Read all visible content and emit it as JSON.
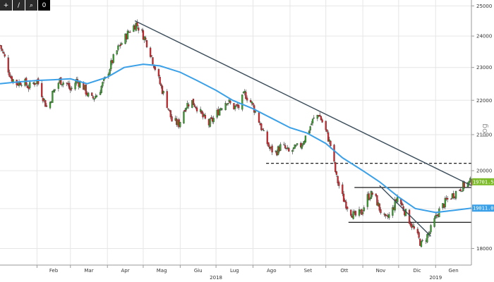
{
  "toolbar": {
    "buttons": [
      {
        "icon": "crosshair-icon",
        "glyph": "+"
      },
      {
        "icon": "pencil-icon",
        "glyph": "/"
      },
      {
        "icon": "magnifier-icon",
        "glyph": "⌕"
      },
      {
        "icon": "zero-icon",
        "glyph": "0"
      }
    ]
  },
  "chart_data": {
    "type": "candlestick",
    "title": "",
    "ylabel_right": "Log",
    "y_scale": "log",
    "ylim": [
      17600,
      25200
    ],
    "y_ticks": [
      18000,
      19000,
      20000,
      21000,
      22000,
      23000,
      24000,
      25000
    ],
    "y_tick_labels": [
      "18000",
      "19000",
      "20000",
      "21000",
      "22000",
      "23000",
      "24000",
      "25000"
    ],
    "x_range": [
      "2018-01-01",
      "2019-01-31"
    ],
    "months": [
      {
        "label": "Feb",
        "date": "2018-02-01"
      },
      {
        "label": "Mar",
        "date": "2018-03-01"
      },
      {
        "label": "Apr",
        "date": "2018-04-01"
      },
      {
        "label": "Mag",
        "date": "2018-05-01"
      },
      {
        "label": "Giu",
        "date": "2018-06-01"
      },
      {
        "label": "Lug",
        "date": "2018-07-01"
      },
      {
        "label": "Ago",
        "date": "2018-08-01"
      },
      {
        "label": "Set",
        "date": "2018-09-01"
      },
      {
        "label": "Ott",
        "date": "2018-10-01"
      },
      {
        "label": "Nov",
        "date": "2018-11-01"
      },
      {
        "label": "Dic",
        "date": "2018-12-01"
      },
      {
        "label": "Gen",
        "date": "2019-01-01"
      }
    ],
    "years": [
      {
        "label": "2018",
        "date": "2018-07-01"
      },
      {
        "label": "2019",
        "date": "2019-01-01"
      }
    ],
    "close_path": [
      [
        "2018-01-01",
        23700
      ],
      [
        "2018-01-05",
        23300
      ],
      [
        "2018-01-10",
        22700
      ],
      [
        "2018-01-15",
        22500
      ],
      [
        "2018-01-20",
        22600
      ],
      [
        "2018-01-25",
        22400
      ],
      [
        "2018-02-01",
        22600
      ],
      [
        "2018-02-06",
        22100
      ],
      [
        "2018-02-10",
        21700
      ],
      [
        "2018-02-14",
        22200
      ],
      [
        "2018-02-20",
        22600
      ],
      [
        "2018-02-26",
        22500
      ],
      [
        "2018-03-01",
        22300
      ],
      [
        "2018-03-06",
        22600
      ],
      [
        "2018-03-12",
        22400
      ],
      [
        "2018-03-18",
        22000
      ],
      [
        "2018-03-24",
        22200
      ],
      [
        "2018-03-31",
        22700
      ],
      [
        "2018-04-05",
        23200
      ],
      [
        "2018-04-10",
        23600
      ],
      [
        "2018-04-15",
        23900
      ],
      [
        "2018-04-20",
        24200
      ],
      [
        "2018-04-25",
        24400
      ],
      [
        "2018-04-30",
        24100
      ],
      [
        "2018-05-05",
        23700
      ],
      [
        "2018-05-10",
        23100
      ],
      [
        "2018-05-15",
        22500
      ],
      [
        "2018-05-20",
        22000
      ],
      [
        "2018-05-25",
        21400
      ],
      [
        "2018-05-31",
        21300
      ],
      [
        "2018-06-05",
        21800
      ],
      [
        "2018-06-10",
        22000
      ],
      [
        "2018-06-15",
        21800
      ],
      [
        "2018-06-20",
        21500
      ],
      [
        "2018-06-25",
        21300
      ],
      [
        "2018-06-30",
        21500
      ],
      [
        "2018-07-05",
        21800
      ],
      [
        "2018-07-10",
        22000
      ],
      [
        "2018-07-15",
        21800
      ],
      [
        "2018-07-20",
        21800
      ],
      [
        "2018-07-25",
        22200
      ],
      [
        "2018-07-31",
        21900
      ],
      [
        "2018-08-05",
        21500
      ],
      [
        "2018-08-10",
        21000
      ],
      [
        "2018-08-15",
        20600
      ],
      [
        "2018-08-20",
        20500
      ],
      [
        "2018-08-25",
        20700
      ],
      [
        "2018-08-31",
        20500
      ],
      [
        "2018-09-05",
        20600
      ],
      [
        "2018-09-10",
        20700
      ],
      [
        "2018-09-15",
        21000
      ],
      [
        "2018-09-20",
        21400
      ],
      [
        "2018-09-25",
        21600
      ],
      [
        "2018-09-30",
        21200
      ],
      [
        "2018-10-05",
        20700
      ],
      [
        "2018-10-10",
        19800
      ],
      [
        "2018-10-15",
        19300
      ],
      [
        "2018-10-20",
        19000
      ],
      [
        "2018-10-25",
        18800
      ],
      [
        "2018-10-31",
        18900
      ],
      [
        "2018-11-05",
        19300
      ],
      [
        "2018-11-10",
        19400
      ],
      [
        "2018-11-15",
        19000
      ],
      [
        "2018-11-20",
        18700
      ],
      [
        "2018-11-25",
        18900
      ],
      [
        "2018-11-30",
        19300
      ],
      [
        "2018-12-05",
        19000
      ],
      [
        "2018-12-10",
        18700
      ],
      [
        "2018-12-15",
        18400
      ],
      [
        "2018-12-20",
        18100
      ],
      [
        "2018-12-27",
        18400
      ],
      [
        "2019-01-03",
        18900
      ],
      [
        "2019-01-10",
        19200
      ],
      [
        "2019-01-17",
        19400
      ],
      [
        "2019-01-24",
        19600
      ],
      [
        "2019-01-31",
        19701
      ]
    ],
    "moving_average": [
      [
        "2018-01-01",
        22500
      ],
      [
        "2018-01-15",
        22550
      ],
      [
        "2018-02-01",
        22600
      ],
      [
        "2018-02-15",
        22620
      ],
      [
        "2018-03-01",
        22650
      ],
      [
        "2018-03-15",
        22500
      ],
      [
        "2018-04-01",
        22700
      ],
      [
        "2018-04-15",
        23000
      ],
      [
        "2018-05-01",
        23100
      ],
      [
        "2018-05-15",
        23050
      ],
      [
        "2018-06-01",
        22850
      ],
      [
        "2018-06-15",
        22600
      ],
      [
        "2018-07-01",
        22300
      ],
      [
        "2018-07-15",
        22000
      ],
      [
        "2018-08-01",
        21750
      ],
      [
        "2018-08-15",
        21500
      ],
      [
        "2018-09-01",
        21200
      ],
      [
        "2018-09-15",
        21050
      ],
      [
        "2018-10-01",
        20750
      ],
      [
        "2018-10-15",
        20350
      ],
      [
        "2018-11-01",
        20000
      ],
      [
        "2018-11-15",
        19700
      ],
      [
        "2018-12-01",
        19300
      ],
      [
        "2018-12-15",
        19000
      ],
      [
        "2019-01-01",
        18900
      ],
      [
        "2019-01-15",
        18950
      ],
      [
        "2019-01-31",
        19011
      ]
    ],
    "trendlines": [
      {
        "from": [
          "2018-04-24",
          24500
        ],
        "to": [
          "2019-01-31",
          19600
        ],
        "style": "solid"
      },
      {
        "from": [
          "2018-11-15",
          19600
        ],
        "to": [
          "2018-12-28",
          18300
        ],
        "style": "solid"
      }
    ],
    "levels": [
      {
        "value": 20200,
        "from": "2018-08-12",
        "to": "2019-01-31",
        "style": "dashed"
      },
      {
        "value": 19550,
        "from": "2018-10-25",
        "to": "2019-01-31",
        "style": "solid"
      },
      {
        "value": 18650,
        "from": "2018-10-20",
        "to": "2019-01-31",
        "style": "solid"
      }
    ],
    "price_labels": [
      {
        "text": "19701.5996",
        "value": 19701.5996,
        "color": "#7dbb2b"
      },
      {
        "text": "19011.0213",
        "value": 19011.0213,
        "color": "#3aa0e8"
      }
    ],
    "colors": {
      "up": "#37a02b",
      "down": "#d6262b",
      "ma": "#3aa0e8",
      "trendline": "#3d4f5c",
      "level": "#000000"
    }
  }
}
